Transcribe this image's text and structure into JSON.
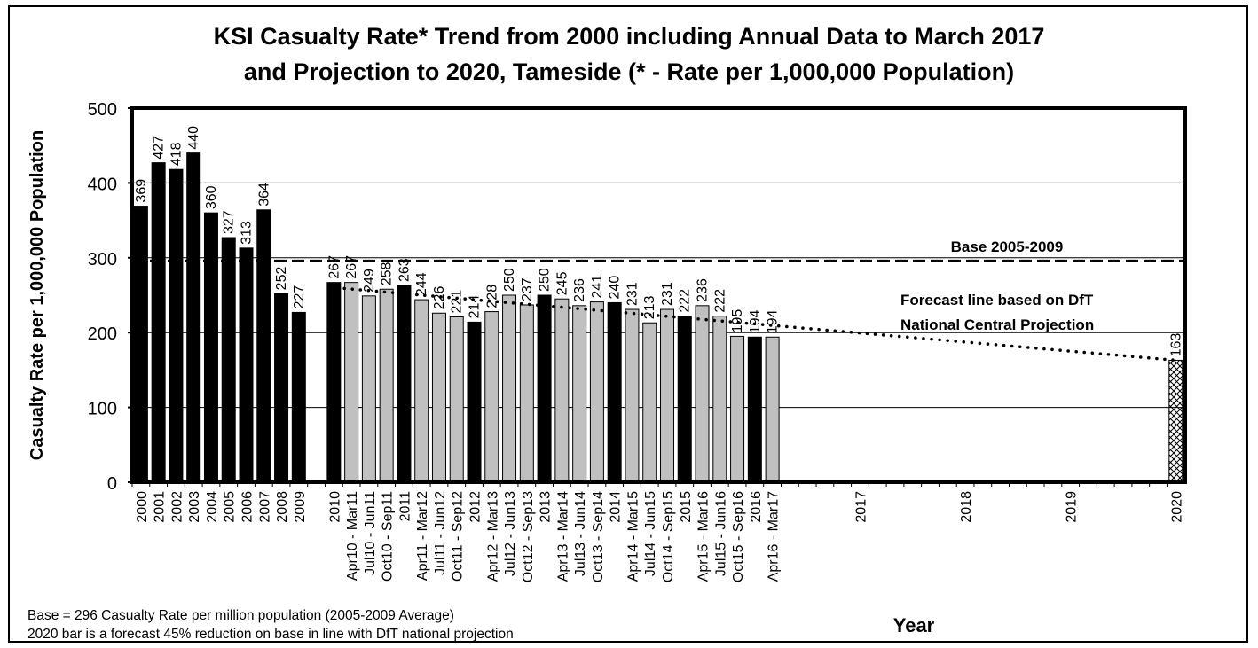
{
  "chart_data": {
    "type": "bar",
    "title_line1": "KSI Casualty Rate* Trend from 2000 including Annual Data to March 2017",
    "title_line2": "and Projection to 2020, Tameside (* - Rate per 1,000,000 Population)",
    "ylabel": "Casualty Rate per 1,000,000 Population",
    "xlabel": "Year",
    "ylim": [
      0,
      500
    ],
    "yticks": [
      0,
      100,
      200,
      300,
      400,
      500
    ],
    "grid": true,
    "series_types": {
      "annual": "black",
      "rolling": "grey",
      "forecast": "hatched"
    },
    "colors": {
      "annual": "#000000",
      "rolling": "#c0c0c0",
      "forecast_hatch": "#000000",
      "grid": "#000000",
      "forecast_line": "#000000",
      "base_line": "#000000"
    },
    "bars": [
      {
        "label": "2000",
        "value": 369,
        "kind": "annual"
      },
      {
        "label": "2001",
        "value": 427,
        "kind": "annual"
      },
      {
        "label": "2002",
        "value": 418,
        "kind": "annual"
      },
      {
        "label": "2003",
        "value": 440,
        "kind": "annual"
      },
      {
        "label": "2004",
        "value": 360,
        "kind": "annual"
      },
      {
        "label": "2005",
        "value": 327,
        "kind": "annual"
      },
      {
        "label": "2006",
        "value": 313,
        "kind": "annual"
      },
      {
        "label": "2007",
        "value": 364,
        "kind": "annual"
      },
      {
        "label": "2008",
        "value": 252,
        "kind": "annual"
      },
      {
        "label": "2009",
        "value": 227,
        "kind": "annual"
      },
      {
        "label": "",
        "value": null,
        "kind": "gap"
      },
      {
        "label": "2010",
        "value": 267,
        "kind": "annual"
      },
      {
        "label": "Apr10 - Mar11",
        "value": 267,
        "kind": "rolling"
      },
      {
        "label": "Jul10 - Jun11",
        "value": 249,
        "kind": "rolling"
      },
      {
        "label": "Oct10 - Sep11",
        "value": 258,
        "kind": "rolling"
      },
      {
        "label": "2011",
        "value": 263,
        "kind": "annual"
      },
      {
        "label": "Apr11 - Mar12",
        "value": 244,
        "kind": "rolling"
      },
      {
        "label": "Jul11 - Jun12",
        "value": 226,
        "kind": "rolling"
      },
      {
        "label": "Oct11 - Sep12",
        "value": 221,
        "kind": "rolling"
      },
      {
        "label": "2012",
        "value": 214,
        "kind": "annual"
      },
      {
        "label": "Apr12 - Mar13",
        "value": 228,
        "kind": "rolling"
      },
      {
        "label": "Jul12 - Jun13",
        "value": 250,
        "kind": "rolling"
      },
      {
        "label": "Oct12 - Sep13",
        "value": 237,
        "kind": "rolling"
      },
      {
        "label": "2013",
        "value": 250,
        "kind": "annual"
      },
      {
        "label": "Apr13 - Mar14",
        "value": 245,
        "kind": "rolling"
      },
      {
        "label": "Jul13 - Jun14",
        "value": 236,
        "kind": "rolling"
      },
      {
        "label": "Oct13 - Sep14",
        "value": 241,
        "kind": "rolling"
      },
      {
        "label": "2014",
        "value": 240,
        "kind": "annual"
      },
      {
        "label": "Apr14 - Mar15",
        "value": 231,
        "kind": "rolling"
      },
      {
        "label": "Jul14 - Jun15",
        "value": 213,
        "kind": "rolling"
      },
      {
        "label": "Oct14 - Sep15",
        "value": 231,
        "kind": "rolling"
      },
      {
        "label": "2015",
        "value": 222,
        "kind": "annual"
      },
      {
        "label": "Apr15 - Mar16",
        "value": 236,
        "kind": "rolling"
      },
      {
        "label": "Jul15 - Jun16",
        "value": 222,
        "kind": "rolling"
      },
      {
        "label": "Oct15 - Sep16",
        "value": 195,
        "kind": "rolling"
      },
      {
        "label": "2016",
        "value": 194,
        "kind": "annual"
      },
      {
        "label": "Apr16 - Mar17",
        "value": 194,
        "kind": "rolling"
      },
      {
        "label": "",
        "value": null,
        "kind": "gap"
      },
      {
        "label": "",
        "value": null,
        "kind": "gap"
      },
      {
        "label": "",
        "value": null,
        "kind": "gap"
      },
      {
        "label": "",
        "value": null,
        "kind": "gap"
      },
      {
        "label": "2017",
        "value": null,
        "kind": "empty"
      },
      {
        "label": "",
        "value": null,
        "kind": "gap"
      },
      {
        "label": "",
        "value": null,
        "kind": "gap"
      },
      {
        "label": "",
        "value": null,
        "kind": "gap"
      },
      {
        "label": "",
        "value": null,
        "kind": "gap"
      },
      {
        "label": "",
        "value": null,
        "kind": "gap"
      },
      {
        "label": "2018",
        "value": null,
        "kind": "empty"
      },
      {
        "label": "",
        "value": null,
        "kind": "gap"
      },
      {
        "label": "",
        "value": null,
        "kind": "gap"
      },
      {
        "label": "",
        "value": null,
        "kind": "gap"
      },
      {
        "label": "",
        "value": null,
        "kind": "gap"
      },
      {
        "label": "",
        "value": null,
        "kind": "gap"
      },
      {
        "label": "2019",
        "value": null,
        "kind": "empty"
      },
      {
        "label": "",
        "value": null,
        "kind": "gap"
      },
      {
        "label": "",
        "value": null,
        "kind": "gap"
      },
      {
        "label": "",
        "value": null,
        "kind": "gap"
      },
      {
        "label": "",
        "value": null,
        "kind": "gap"
      },
      {
        "label": "",
        "value": null,
        "kind": "gap"
      },
      {
        "label": "2020",
        "value": 163,
        "kind": "forecast"
      }
    ],
    "base_line": {
      "value": 296,
      "label": "Base 2005-2009",
      "style": "dashed"
    },
    "forecast_line": {
      "label_line1": "Forecast line based on DfT",
      "label_line2": "National Central Projection",
      "style": "dotted",
      "start": {
        "label": "Apr10 - Mar11",
        "value": 259
      },
      "end": {
        "label": "2020",
        "value": 163
      }
    },
    "annotations": [
      "Base = 296 Casualty Rate per million population (2005-2009 Average)",
      "2020 bar is a forecast 45% reduction on base in line with DfT national  projection"
    ]
  }
}
